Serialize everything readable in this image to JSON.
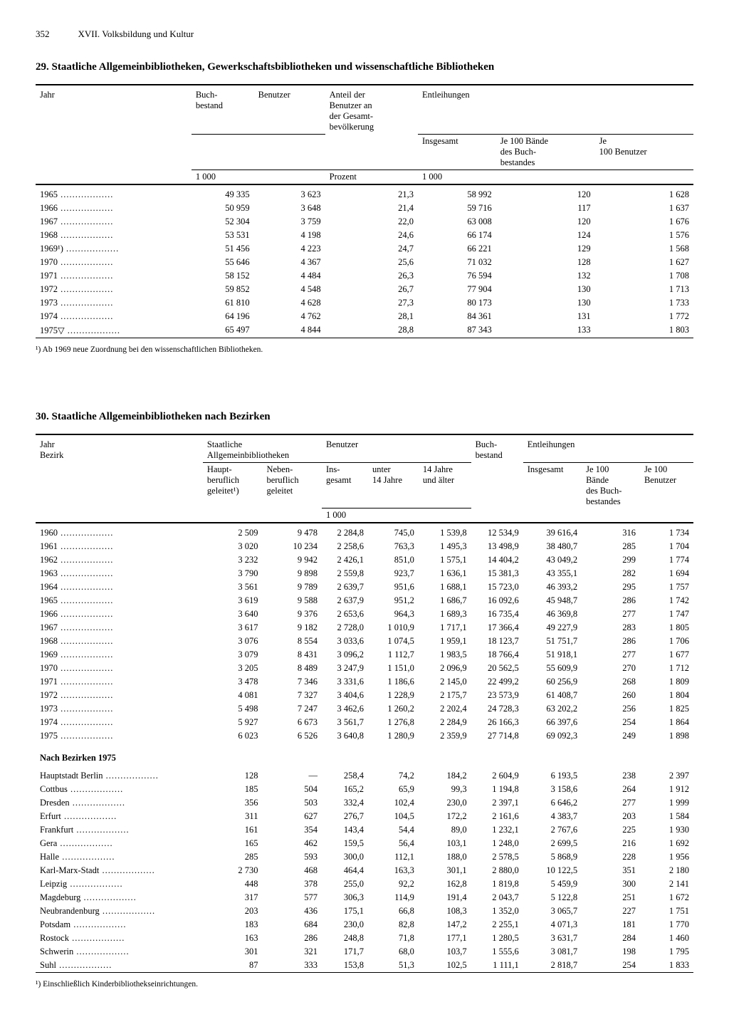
{
  "header": {
    "page_number": "352",
    "chapter": "XVII. Volksbildung und Kultur"
  },
  "table29": {
    "title": "29. Staatliche Allgemeinbibliotheken, Gewerkschaftsbibliotheken und wissenschaftliche Bibliotheken",
    "columns": {
      "jahr": "Jahr",
      "buchbestand": "Buch-\nbestand",
      "benutzer": "Benutzer",
      "anteil": "Anteil der\nBenutzer an\nder Gesamt-\nbevölkerung",
      "entleihungen": "Entleihungen",
      "insgesamt": "Insgesamt",
      "je100bande": "Je 100 Bände\ndes Buch-\nbestandes",
      "je100benutzer": "Je\n100 Benutzer",
      "unit_1000": "1 000",
      "unit_prozent": "Prozent",
      "unit_1000b": "1 000"
    },
    "rows": [
      {
        "jahr": "1965",
        "buch": "49 335",
        "ben": "3 623",
        "ant": "21,3",
        "ins": "58 992",
        "j100b": "120",
        "j100be": "1 628"
      },
      {
        "jahr": "1966",
        "buch": "50 959",
        "ben": "3 648",
        "ant": "21,4",
        "ins": "59 716",
        "j100b": "117",
        "j100be": "1 637"
      },
      {
        "jahr": "1967",
        "buch": "52 304",
        "ben": "3 759",
        "ant": "22,0",
        "ins": "63 008",
        "j100b": "120",
        "j100be": "1 676"
      },
      {
        "jahr": "1968",
        "buch": "53 531",
        "ben": "4 198",
        "ant": "24,6",
        "ins": "66 174",
        "j100b": "124",
        "j100be": "1 576"
      },
      {
        "jahr": "1969¹)",
        "buch": "51 456",
        "ben": "4 223",
        "ant": "24,7",
        "ins": "66 221",
        "j100b": "129",
        "j100be": "1 568"
      },
      {
        "jahr": "1970",
        "buch": "55 646",
        "ben": "4 367",
        "ant": "25,6",
        "ins": "71 032",
        "j100b": "128",
        "j100be": "1 627"
      },
      {
        "jahr": "1971",
        "buch": "58 152",
        "ben": "4 484",
        "ant": "26,3",
        "ins": "76 594",
        "j100b": "132",
        "j100be": "1 708"
      },
      {
        "jahr": "1972",
        "buch": "59 852",
        "ben": "4 548",
        "ant": "26,7",
        "ins": "77 904",
        "j100b": "130",
        "j100be": "1 713"
      },
      {
        "jahr": "1973",
        "buch": "61 810",
        "ben": "4 628",
        "ant": "27,3",
        "ins": "80 173",
        "j100b": "130",
        "j100be": "1 733"
      },
      {
        "jahr": "1974",
        "buch": "64 196",
        "ben": "4 762",
        "ant": "28,1",
        "ins": "84 361",
        "j100b": "131",
        "j100be": "1 772"
      },
      {
        "jahr": "1975▽",
        "buch": "65 497",
        "ben": "4 844",
        "ant": "28,8",
        "ins": "87 343",
        "j100b": "133",
        "j100be": "1 803"
      }
    ],
    "footnote": "¹) Ab 1969 neue Zuordnung bei den wissenschaftlichen Bibliotheken."
  },
  "table30": {
    "title": "30. Staatliche Allgemeinbibliotheken nach Bezirken",
    "columns": {
      "jahr_bezirk": "Jahr\nBezirk",
      "staatliche": "Staatliche\nAllgemeinbibliotheken",
      "haupt": "Haupt-\nberuflich\ngeleitet¹)",
      "neben": "Neben-\nberuflich\ngeleitet",
      "benutzer": "Benutzer",
      "insgesamt": "Ins-\ngesamt",
      "unter14": "unter\n14 Jahre",
      "ueber14": "14 Jahre\nund älter",
      "buchbestand": "Buch-\nbestand",
      "entleihungen": "Entleihungen",
      "ent_ins": "Insgesamt",
      "je100bande": "Je 100\nBände\ndes Buch-\nbestandes",
      "je100ben": "Je 100\nBenutzer",
      "unit_1000": "1 000"
    },
    "year_rows": [
      {
        "y": "1960",
        "h": "2 509",
        "n": "9 478",
        "bi": "2 284,8",
        "u14": "745,0",
        "o14": "1 539,8",
        "bb": "12 534,9",
        "ei": "39 616,4",
        "j1": "316",
        "j2": "1 734"
      },
      {
        "y": "1961",
        "h": "3 020",
        "n": "10 234",
        "bi": "2 258,6",
        "u14": "763,3",
        "o14": "1 495,3",
        "bb": "13 498,9",
        "ei": "38 480,7",
        "j1": "285",
        "j2": "1 704"
      },
      {
        "y": "1962",
        "h": "3 232",
        "n": "9 942",
        "bi": "2 426,1",
        "u14": "851,0",
        "o14": "1 575,1",
        "bb": "14 404,2",
        "ei": "43 049,2",
        "j1": "299",
        "j2": "1 774"
      },
      {
        "y": "1963",
        "h": "3 790",
        "n": "9 898",
        "bi": "2 559,8",
        "u14": "923,7",
        "o14": "1 636,1",
        "bb": "15 381,3",
        "ei": "43 355,1",
        "j1": "282",
        "j2": "1 694"
      },
      {
        "y": "1964",
        "h": "3 561",
        "n": "9 789",
        "bi": "2 639,7",
        "u14": "951,6",
        "o14": "1 688,1",
        "bb": "15 723,0",
        "ei": "46 393,2",
        "j1": "295",
        "j2": "1 757"
      },
      {
        "y": "1965",
        "h": "3 619",
        "n": "9 588",
        "bi": "2 637,9",
        "u14": "951,2",
        "o14": "1 686,7",
        "bb": "16 092,6",
        "ei": "45 948,7",
        "j1": "286",
        "j2": "1 742"
      },
      {
        "y": "1966",
        "h": "3 640",
        "n": "9 376",
        "bi": "2 653,6",
        "u14": "964,3",
        "o14": "1 689,3",
        "bb": "16 735,4",
        "ei": "46 369,8",
        "j1": "277",
        "j2": "1 747"
      },
      {
        "y": "1967",
        "h": "3 617",
        "n": "9 182",
        "bi": "2 728,0",
        "u14": "1 010,9",
        "o14": "1 717,1",
        "bb": "17 366,4",
        "ei": "49 227,9",
        "j1": "283",
        "j2": "1 805"
      },
      {
        "y": "1968",
        "h": "3 076",
        "n": "8 554",
        "bi": "3 033,6",
        "u14": "1 074,5",
        "o14": "1 959,1",
        "bb": "18 123,7",
        "ei": "51 751,7",
        "j1": "286",
        "j2": "1 706"
      },
      {
        "y": "1969",
        "h": "3 079",
        "n": "8 431",
        "bi": "3 096,2",
        "u14": "1 112,7",
        "o14": "1 983,5",
        "bb": "18 766,4",
        "ei": "51 918,1",
        "j1": "277",
        "j2": "1 677"
      },
      {
        "y": "1970",
        "h": "3 205",
        "n": "8 489",
        "bi": "3 247,9",
        "u14": "1 151,0",
        "o14": "2 096,9",
        "bb": "20 562,5",
        "ei": "55 609,9",
        "j1": "270",
        "j2": "1 712"
      },
      {
        "y": "1971",
        "h": "3 478",
        "n": "7 346",
        "bi": "3 331,6",
        "u14": "1 186,6",
        "o14": "2 145,0",
        "bb": "22 499,2",
        "ei": "60 256,9",
        "j1": "268",
        "j2": "1 809"
      },
      {
        "y": "1972",
        "h": "4 081",
        "n": "7 327",
        "bi": "3 404,6",
        "u14": "1 228,9",
        "o14": "2 175,7",
        "bb": "23 573,9",
        "ei": "61 408,7",
        "j1": "260",
        "j2": "1 804"
      },
      {
        "y": "1973",
        "h": "5 498",
        "n": "7 247",
        "bi": "3 462,6",
        "u14": "1 260,2",
        "o14": "2 202,4",
        "bb": "24 728,3",
        "ei": "63 202,2",
        "j1": "256",
        "j2": "1 825"
      },
      {
        "y": "1974",
        "h": "5 927",
        "n": "6 673",
        "bi": "3 561,7",
        "u14": "1 276,8",
        "o14": "2 284,9",
        "bb": "26 166,3",
        "ei": "66 397,6",
        "j1": "254",
        "j2": "1 864"
      },
      {
        "y": "1975",
        "h": "6 023",
        "n": "6 526",
        "bi": "3 640,8",
        "u14": "1 280,9",
        "o14": "2 359,9",
        "bb": "27 714,8",
        "ei": "69 092,3",
        "j1": "249",
        "j2": "1 898"
      }
    ],
    "bezirk_heading": "Nach Bezirken 1975",
    "bezirk_rows": [
      {
        "y": "Hauptstadt Berlin",
        "h": "128",
        "n": "—",
        "bi": "258,4",
        "u14": "74,2",
        "o14": "184,2",
        "bb": "2 604,9",
        "ei": "6 193,5",
        "j1": "238",
        "j2": "2 397"
      },
      {
        "y": "Cottbus",
        "h": "185",
        "n": "504",
        "bi": "165,2",
        "u14": "65,9",
        "o14": "99,3",
        "bb": "1 194,8",
        "ei": "3 158,6",
        "j1": "264",
        "j2": "1 912"
      },
      {
        "y": "Dresden",
        "h": "356",
        "n": "503",
        "bi": "332,4",
        "u14": "102,4",
        "o14": "230,0",
        "bb": "2 397,1",
        "ei": "6 646,2",
        "j1": "277",
        "j2": "1 999"
      },
      {
        "y": "Erfurt",
        "h": "311",
        "n": "627",
        "bi": "276,7",
        "u14": "104,5",
        "o14": "172,2",
        "bb": "2 161,6",
        "ei": "4 383,7",
        "j1": "203",
        "j2": "1 584"
      },
      {
        "y": "Frankfurt",
        "h": "161",
        "n": "354",
        "bi": "143,4",
        "u14": "54,4",
        "o14": "89,0",
        "bb": "1 232,1",
        "ei": "2 767,6",
        "j1": "225",
        "j2": "1 930"
      },
      {
        "y": "Gera",
        "h": "165",
        "n": "462",
        "bi": "159,5",
        "u14": "56,4",
        "o14": "103,1",
        "bb": "1 248,0",
        "ei": "2 699,5",
        "j1": "216",
        "j2": "1 692"
      },
      {
        "y": "Halle",
        "h": "285",
        "n": "593",
        "bi": "300,0",
        "u14": "112,1",
        "o14": "188,0",
        "bb": "2 578,5",
        "ei": "5 868,9",
        "j1": "228",
        "j2": "1 956"
      },
      {
        "y": "Karl-Marx-Stadt",
        "h": "2 730",
        "n": "468",
        "bi": "464,4",
        "u14": "163,3",
        "o14": "301,1",
        "bb": "2 880,0",
        "ei": "10 122,5",
        "j1": "351",
        "j2": "2 180"
      },
      {
        "y": "Leipzig",
        "h": "448",
        "n": "378",
        "bi": "255,0",
        "u14": "92,2",
        "o14": "162,8",
        "bb": "1 819,8",
        "ei": "5 459,9",
        "j1": "300",
        "j2": "2 141"
      },
      {
        "y": "Magdeburg",
        "h": "317",
        "n": "577",
        "bi": "306,3",
        "u14": "114,9",
        "o14": "191,4",
        "bb": "2 043,7",
        "ei": "5 122,8",
        "j1": "251",
        "j2": "1 672"
      },
      {
        "y": "Neubrandenburg",
        "h": "203",
        "n": "436",
        "bi": "175,1",
        "u14": "66,8",
        "o14": "108,3",
        "bb": "1 352,0",
        "ei": "3 065,7",
        "j1": "227",
        "j2": "1 751"
      },
      {
        "y": "Potsdam",
        "h": "183",
        "n": "684",
        "bi": "230,0",
        "u14": "82,8",
        "o14": "147,2",
        "bb": "2 255,1",
        "ei": "4 071,3",
        "j1": "181",
        "j2": "1 770"
      },
      {
        "y": "Rostock",
        "h": "163",
        "n": "286",
        "bi": "248,8",
        "u14": "71,8",
        "o14": "177,1",
        "bb": "1 280,5",
        "ei": "3 631,7",
        "j1": "284",
        "j2": "1 460"
      },
      {
        "y": "Schwerin",
        "h": "301",
        "n": "321",
        "bi": "171,7",
        "u14": "68,0",
        "o14": "103,7",
        "bb": "1 555,6",
        "ei": "3 081,7",
        "j1": "198",
        "j2": "1 795"
      },
      {
        "y": "Suhl",
        "h": "87",
        "n": "333",
        "bi": "153,8",
        "u14": "51,3",
        "o14": "102,5",
        "bb": "1 111,1",
        "ei": "2 818,7",
        "j1": "254",
        "j2": "1 833"
      }
    ],
    "footnote": "¹) Einschließlich Kinderbibliothekseinrichtungen."
  }
}
